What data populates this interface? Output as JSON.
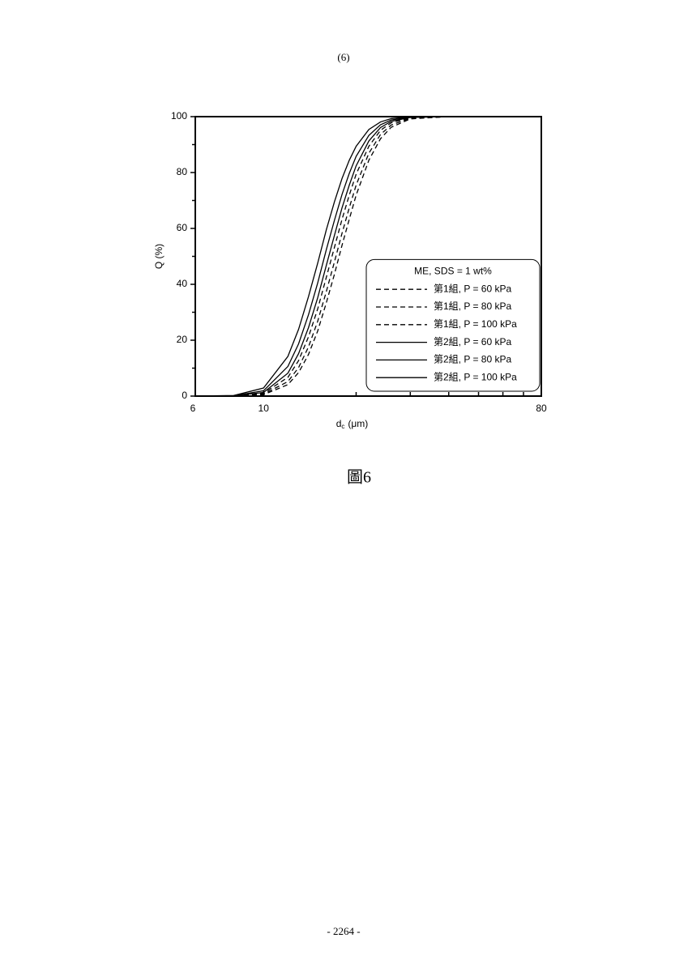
{
  "header": {
    "page_marker": "(6)"
  },
  "chart_data": {
    "type": "line",
    "xlabel": {
      "main": "d",
      "sub": "c",
      "unit": "(μm)"
    },
    "ylabel": "Q (%)",
    "xscale": "log",
    "xlim": [
      6,
      80
    ],
    "xticks": [
      6,
      10,
      80
    ],
    "x_minor_ticks": [
      20,
      30,
      40,
      50,
      60,
      70
    ],
    "ylim": [
      0,
      100
    ],
    "yticks": [
      0,
      20,
      40,
      60,
      80,
      100
    ],
    "y_minor_ticks": [
      10,
      30,
      50,
      70,
      90
    ],
    "legend_title": "ME, SDS = 1 wt%",
    "legend_position": "lower right",
    "x": [
      6,
      8,
      10,
      12,
      13,
      14,
      15,
      16,
      17,
      18,
      19,
      20,
      22,
      24,
      26,
      30,
      40
    ],
    "series": [
      {
        "name": "第1組, P = 60 kPa",
        "color": "#000000",
        "dash": true,
        "values": [
          0,
          0,
          0.5,
          4.1,
          8.4,
          14.9,
          23.3,
          33.4,
          43.6,
          54.0,
          63.3,
          71.9,
          84.4,
          92.1,
          96.2,
          99.2,
          100
        ]
      },
      {
        "name": "第1組, P = 80 kPa",
        "color": "#000000",
        "dash": true,
        "values": [
          0,
          0,
          0.7,
          5.2,
          10.2,
          17.6,
          26.8,
          37.4,
          48.0,
          58.3,
          67.4,
          75.5,
          86.9,
          93.6,
          97.0,
          99.4,
          100
        ]
      },
      {
        "name": "第1組, P = 100 kPa",
        "color": "#000000",
        "dash": true,
        "values": [
          0,
          0,
          1.0,
          6.7,
          12.7,
          21.2,
          31.2,
          42.5,
          53.2,
          63.3,
          71.9,
          79.4,
          89.4,
          95.1,
          97.8,
          99.6,
          100
        ]
      },
      {
        "name": "第2組, P = 60 kPa",
        "color": "#000000",
        "dash": false,
        "values": [
          0,
          0.1,
          1.3,
          8.2,
          15.2,
          24.5,
          35.2,
          46.8,
          57.5,
          67.4,
          75.5,
          82.4,
          91.3,
          96.1,
          98.3,
          99.7,
          100
        ]
      },
      {
        "name": "第2組, P = 80 kPa",
        "color": "#000000",
        "dash": false,
        "values": [
          0,
          0.1,
          1.9,
          10.6,
          18.7,
          29.1,
          40.5,
          52.4,
          62.9,
          72.2,
          79.7,
          85.8,
          93.3,
          97.1,
          98.8,
          99.8,
          100
        ]
      },
      {
        "name": "第2組, P = 100 kPa",
        "color": "#000000",
        "dash": false,
        "values": [
          0,
          0.2,
          2.9,
          14.2,
          23.9,
          35.6,
          47.6,
          59.5,
          69.5,
          77.9,
          84.4,
          89.4,
          95.4,
          98.1,
          99.3,
          99.9,
          100
        ]
      }
    ]
  },
  "caption": "圖6",
  "footer": "- 2264 -"
}
